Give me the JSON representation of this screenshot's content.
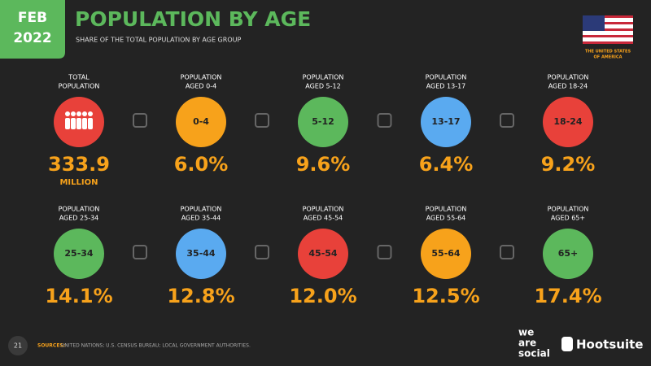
{
  "header": {
    "badge": [
      "FEB",
      "2022"
    ],
    "title": "POPULATION BY AGE",
    "subtitle": "SHARE OF THE TOTAL POPULATION BY AGE GROUP",
    "country": [
      "THE UNITED STATES",
      "OF AMERICA"
    ]
  },
  "tiles": [
    {
      "label": [
        "TOTAL",
        "POPULATION"
      ],
      "icon": null,
      "value": "333.9",
      "unit": "MILLION",
      "color": "#e8413a"
    },
    {
      "label": [
        "POPULATION",
        "AGED 0-4"
      ],
      "icon": "0-4",
      "value": "6.0%",
      "color": "#f7a21b"
    },
    {
      "label": [
        "POPULATION",
        "AGED 5-12"
      ],
      "icon": "5-12",
      "value": "9.6%",
      "color": "#5cb85c"
    },
    {
      "label": [
        "POPULATION",
        "AGED 13-17"
      ],
      "icon": "13-17",
      "value": "6.4%",
      "color": "#5aaaf0"
    },
    {
      "label": [
        "POPULATION",
        "AGED 18-24"
      ],
      "icon": "18-24",
      "value": "9.2%",
      "color": "#e8413a"
    },
    {
      "label": [
        "POPULATION",
        "AGED 25-34"
      ],
      "icon": "25-34",
      "value": "14.1%",
      "color": "#5cb85c"
    },
    {
      "label": [
        "POPULATION",
        "AGED 35-44"
      ],
      "icon": "35-44",
      "value": "12.8%",
      "color": "#5aaaf0"
    },
    {
      "label": [
        "POPULATION",
        "AGED 45-54"
      ],
      "icon": "45-54",
      "value": "12.0%",
      "color": "#e8413a"
    },
    {
      "label": [
        "POPULATION",
        "AGED 55-64"
      ],
      "icon": "55-64",
      "value": "12.5%",
      "color": "#f7a21b"
    },
    {
      "label": [
        "POPULATION",
        "AGED 65+"
      ],
      "icon": "65+",
      "value": "17.4%",
      "color": "#5cb85c"
    }
  ],
  "footer": {
    "page": "21",
    "sources_label": "SOURCES:",
    "sources": "UNITED NATIONS; U.S. CENSUS BUREAU; LOCAL GOVERNMENT AUTHORITIES.",
    "logo_left": [
      "we",
      "are",
      "social"
    ],
    "logo_right": "Hootsuite"
  }
}
